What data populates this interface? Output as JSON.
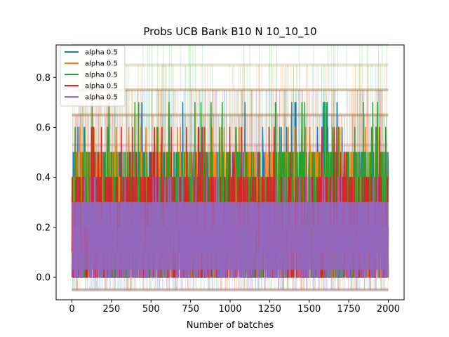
{
  "chart_data": {
    "type": "line",
    "title": "Probs UCB Bank B10 N 10_10_10",
    "xlabel": "Number of batches",
    "ylabel": "",
    "xlim": [
      -100,
      2100
    ],
    "ylim": [
      -0.09,
      0.93
    ],
    "xticks": [
      0,
      250,
      500,
      750,
      1000,
      1250,
      1500,
      1750,
      2000
    ],
    "xtick_labels": [
      "0",
      "250",
      "500",
      "750",
      "1000",
      "1250",
      "1500",
      "1750",
      "2000"
    ],
    "yticks": [
      0.0,
      0.2,
      0.4,
      0.6,
      0.8
    ],
    "ytick_labels": [
      "0.0",
      "0.2",
      "0.4",
      "0.6",
      "0.8"
    ],
    "grid": false,
    "legend_position": "upper-left",
    "series": [
      {
        "name": "alpha 0.5",
        "color": "#1f77b4",
        "band_low": 0.0,
        "band_high": 0.5,
        "spike_levels": [
          0.6,
          0.7
        ],
        "background_levels": [
          -0.05,
          0.65,
          0.75
        ]
      },
      {
        "name": "alpha 0.5",
        "color": "#ff7f0e",
        "band_low": 0.0,
        "band_high": 0.5,
        "spike_levels": [
          0.6
        ],
        "background_levels": [
          -0.05,
          0.65,
          0.75,
          0.85
        ]
      },
      {
        "name": "alpha 0.5",
        "color": "#2ca02c",
        "band_low": 0.0,
        "band_high": 0.5,
        "spike_levels": [
          0.6,
          0.7
        ],
        "background_levels": [
          -0.05,
          0.65,
          0.75,
          0.85,
          0.93
        ]
      },
      {
        "name": "alpha 0.5",
        "color": "#d62728",
        "band_low": 0.0,
        "band_high": 0.4,
        "spike_levels": [
          0.5,
          0.6
        ],
        "background_levels": [
          -0.05,
          0.53,
          0.65,
          0.75
        ]
      },
      {
        "name": "alpha 0.5",
        "color": "#9467bd",
        "band_low": 0.0,
        "band_high": 0.3,
        "spike_levels": [
          0.4
        ],
        "background_levels": [
          -0.05,
          0.4,
          0.53
        ]
      }
    ],
    "x_range": [
      0,
      2000
    ]
  }
}
